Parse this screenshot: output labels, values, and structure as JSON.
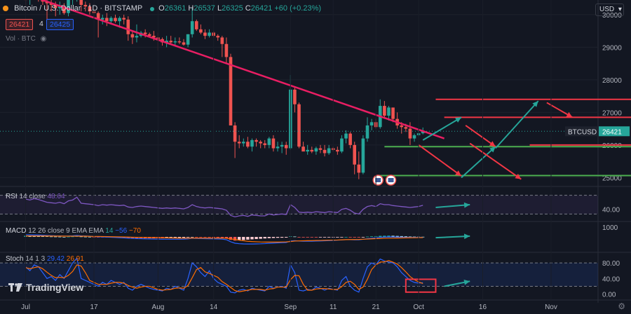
{
  "header": {
    "symbol": "Bitcoin / U.S. Dollar · 1D · BITSTAMP",
    "open_label": "O",
    "open": "26361",
    "high_label": "H",
    "high": "26537",
    "low_label": "L",
    "low": "26325",
    "close_label": "C",
    "close": "26421",
    "change": "+60 (+0.23%)",
    "sell_price": "26421",
    "spread": "4",
    "buy_price": "26425"
  },
  "volume_label": "Vol · BTC",
  "currency_button": "USD",
  "price_axis": {
    "ticks": [
      25000,
      26000,
      27000,
      28000,
      29000,
      30000
    ],
    "tick_labels": [
      "25000",
      "26000",
      "27000",
      "28000",
      "29000",
      "30000"
    ],
    "range": [
      24900,
      30450
    ],
    "tag_symbol": "BTCUSD",
    "tag_price": "26421"
  },
  "rsi": {
    "name": "RSI",
    "params": "14 close",
    "value": "48.64",
    "axis_label": "40.00",
    "axis_value": 40,
    "range": [
      20,
      80
    ],
    "bands": [
      30,
      70
    ]
  },
  "macd": {
    "name": "MACD",
    "params": "12 26 close 9 EMA EMA",
    "histogram_value": "14",
    "macd_value": "−56",
    "signal_value": "−70",
    "axis_label": "1000",
    "axis_value": 1000,
    "range": [
      -1300,
      1300
    ]
  },
  "stoch": {
    "name": "Stoch",
    "params": "14 1 3",
    "k_value": "29.42",
    "d_value": "26.91",
    "axis_labels": [
      "80.00",
      "40.00",
      "0.00"
    ],
    "axis_values": [
      80,
      40,
      0
    ],
    "range": [
      -8,
      100
    ],
    "bands": [
      20,
      80
    ]
  },
  "time_axis": {
    "labels": [
      "Jul",
      "17",
      "Aug",
      "14",
      "Sep",
      "11",
      "21",
      "Oct",
      "16",
      "Nov"
    ],
    "label_days": [
      0,
      16,
      31,
      44,
      62,
      72,
      82,
      92,
      107,
      123
    ],
    "start": "2023-07-01",
    "day_count": 140
  },
  "branding": "TradingView",
  "colors": {
    "up": "#26a69a",
    "down": "#ef5350",
    "trendline": "#e91e63",
    "support": "#4caf50",
    "resistance": "#f23645",
    "arrow_up": "#26a69a",
    "arrow_down": "#f23645",
    "rsi": "#7e57c2",
    "macd": "#2962ff",
    "signal": "#ff6d00",
    "stoch_k": "#2962ff",
    "stoch_d": "#ff6d00",
    "callout": "#f23645"
  },
  "chart_data": {
    "type": "candlestick",
    "title": "Bitcoin / U.S. Dollar · 1D · BITSTAMP",
    "xlabel": "",
    "ylabel": "",
    "ylim": [
      24900,
      30450
    ],
    "x_start": "2023-07-01",
    "x_step_days": 1,
    "candles_ohlc": [
      [
        30470,
        30600,
        30200,
        30450
      ],
      [
        30450,
        30650,
        30300,
        30600
      ],
      [
        30600,
        30800,
        30500,
        30700
      ],
      [
        30700,
        30900,
        30400,
        30550
      ],
      [
        30550,
        30700,
        30300,
        30400
      ],
      [
        30400,
        30600,
        29800,
        30350
      ],
      [
        30350,
        30500,
        30100,
        30300
      ],
      [
        30300,
        30400,
        29950,
        30200
      ],
      [
        30200,
        30400,
        30000,
        30250
      ],
      [
        30250,
        30350,
        30000,
        30050
      ],
      [
        30050,
        30550,
        29950,
        30500
      ],
      [
        30500,
        30800,
        30300,
        30600
      ],
      [
        30600,
        31800,
        30400,
        31450
      ],
      [
        31450,
        31600,
        30100,
        30300
      ],
      [
        30300,
        30400,
        30100,
        30250
      ],
      [
        30250,
        30350,
        30000,
        30100
      ],
      [
        30100,
        30200,
        29900,
        30050
      ],
      [
        30050,
        30100,
        29300,
        29850
      ],
      [
        29850,
        30000,
        29700,
        29900
      ],
      [
        29900,
        30050,
        29650,
        29800
      ],
      [
        29800,
        29950,
        29700,
        29900
      ],
      [
        29900,
        30000,
        29750,
        29800
      ],
      [
        29800,
        29950,
        29600,
        29900
      ],
      [
        29900,
        30000,
        29700,
        29850
      ],
      [
        29850,
        29950,
        29200,
        29400
      ],
      [
        29400,
        29500,
        29100,
        29300
      ],
      [
        29300,
        29700,
        29150,
        29350
      ],
      [
        29350,
        29500,
        29300,
        29450
      ],
      [
        29450,
        29550,
        29300,
        29400
      ],
      [
        29400,
        29450,
        29300,
        29350
      ],
      [
        29350,
        29500,
        29200,
        29300
      ],
      [
        29300,
        29450,
        28900,
        29250
      ],
      [
        29250,
        29300,
        29050,
        29150
      ],
      [
        29150,
        29350,
        29000,
        29200
      ],
      [
        29200,
        29350,
        29100,
        29150
      ],
      [
        29150,
        29300,
        29050,
        29180
      ],
      [
        29180,
        29300,
        29100,
        29150
      ],
      [
        29150,
        29250,
        29050,
        29080
      ],
      [
        29080,
        29400,
        29000,
        29400
      ],
      [
        29400,
        30200,
        29300,
        29800
      ],
      [
        29800,
        29850,
        29500,
        29550
      ],
      [
        29550,
        29700,
        29400,
        29450
      ],
      [
        29450,
        29550,
        29250,
        29350
      ],
      [
        29350,
        29550,
        29300,
        29450
      ],
      [
        29450,
        29500,
        29300,
        29350
      ],
      [
        29350,
        29400,
        29200,
        29300
      ],
      [
        29300,
        29350,
        28700,
        29100
      ],
      [
        29100,
        29300,
        28500,
        28700
      ],
      [
        28700,
        28800,
        26700,
        26600
      ],
      [
        26600,
        26700,
        25600,
        26100
      ],
      [
        26100,
        26300,
        25900,
        26050
      ],
      [
        26050,
        26200,
        25950,
        26100
      ],
      [
        26100,
        26250,
        25900,
        25950
      ],
      [
        25950,
        26200,
        25800,
        26150
      ],
      [
        26150,
        26200,
        25950,
        26100
      ],
      [
        26100,
        26150,
        25900,
        26050
      ],
      [
        26050,
        26150,
        25900,
        26000
      ],
      [
        26000,
        26250,
        25900,
        26200
      ],
      [
        26200,
        26300,
        25800,
        25900
      ],
      [
        25900,
        26100,
        25800,
        25950
      ],
      [
        25950,
        26100,
        25750,
        26000
      ],
      [
        26000,
        26100,
        25700,
        25900
      ],
      [
        25900,
        28150,
        25850,
        27700
      ],
      [
        27700,
        27800,
        27000,
        27250
      ],
      [
        27250,
        27300,
        25900,
        25950
      ],
      [
        25950,
        26100,
        25850,
        25800
      ],
      [
        25800,
        26000,
        25700,
        25850
      ],
      [
        25850,
        25950,
        25750,
        25800
      ],
      [
        25800,
        25950,
        25700,
        25900
      ],
      [
        25900,
        26000,
        25750,
        25850
      ],
      [
        25850,
        26000,
        25650,
        25750
      ],
      [
        25750,
        26000,
        25700,
        25900
      ],
      [
        25900,
        25950,
        25800,
        25850
      ],
      [
        25850,
        25950,
        25700,
        25800
      ],
      [
        25800,
        26300,
        25750,
        26200
      ],
      [
        26200,
        26450,
        26050,
        26350
      ],
      [
        26350,
        26400,
        25900,
        26000
      ],
      [
        26000,
        26100,
        25100,
        25400
      ],
      [
        25400,
        25800,
        24950,
        25150
      ],
      [
        25150,
        26300,
        25100,
        26200
      ],
      [
        26200,
        26850,
        26100,
        26600
      ],
      [
        26600,
        26800,
        26450,
        26700
      ],
      [
        26700,
        26800,
        26500,
        26550
      ],
      [
        26550,
        27400,
        26500,
        27200
      ],
      [
        27200,
        27350,
        26800,
        26900
      ],
      [
        26900,
        27200,
        26750,
        27150
      ],
      [
        27150,
        27000,
        26700,
        26800
      ],
      [
        26800,
        27000,
        26500,
        26600
      ],
      [
        26600,
        26700,
        26350,
        26550
      ],
      [
        26550,
        26650,
        26400,
        26500
      ],
      [
        26500,
        26700,
        26000,
        26200
      ],
      [
        26200,
        26350,
        26100,
        26300
      ],
      [
        26300,
        26450,
        26250,
        26361
      ],
      [
        26361,
        26537,
        26325,
        26421
      ]
    ],
    "overlays": {
      "trendline": {
        "x_days": [
          -6,
          98
        ],
        "y": [
          30900,
          26200
        ]
      },
      "support_lines": [
        {
          "x_days": [
            84,
            144
          ],
          "y": 25950
        },
        {
          "x_days": [
            82,
            144
          ],
          "y": 25060
        }
      ],
      "resistance_lines": [
        {
          "x_days": [
            96,
            157
          ],
          "y": 27400
        },
        {
          "x_days": [
            98,
            157
          ],
          "y": 26850
        },
        {
          "x_days": [
            118,
            144
          ],
          "y": 26000
        }
      ],
      "forecast_arrows_up": [
        {
          "from": [
            93,
            26150
          ],
          "to": [
            102,
            26850
          ]
        },
        {
          "from": [
            102,
            25000
          ],
          "to": [
            110,
            25950
          ]
        },
        {
          "from": [
            110,
            25900
          ],
          "to": [
            120,
            27350
          ]
        }
      ],
      "forecast_arrows_down": [
        {
          "from": [
            92,
            26000
          ],
          "to": [
            102,
            25050
          ]
        },
        {
          "from": [
            103,
            26600
          ],
          "to": [
            110,
            25950
          ]
        },
        {
          "from": [
            122,
            27300
          ],
          "to": [
            128,
            26850
          ]
        },
        {
          "from": [
            104,
            26050
          ],
          "to": [
            116,
            24950
          ]
        }
      ]
    },
    "rsi_series": [
      62,
      60,
      63,
      61,
      58,
      55,
      54,
      53,
      55,
      52,
      58,
      60,
      66,
      53,
      52,
      51,
      50,
      48,
      50,
      49,
      50,
      49,
      48,
      49,
      45,
      44,
      46,
      47,
      46,
      45,
      44,
      43,
      42,
      43,
      42,
      43,
      42,
      41,
      44,
      50,
      46,
      44,
      43,
      44,
      43,
      42,
      41,
      38,
      27,
      24,
      26,
      27,
      25,
      28,
      27,
      26,
      26,
      30,
      28,
      29,
      30,
      29,
      50,
      44,
      34,
      33,
      34,
      33,
      35,
      34,
      33,
      35,
      34,
      33,
      40,
      42,
      38,
      32,
      30,
      40,
      46,
      48,
      46,
      52,
      50,
      50,
      48,
      47,
      46,
      45,
      44,
      45,
      46,
      48.64
    ],
    "macd_hist": [
      120,
      110,
      100,
      90,
      70,
      60,
      40,
      30,
      20,
      0,
      20,
      40,
      80,
      40,
      20,
      10,
      -10,
      -30,
      -40,
      -50,
      -60,
      -70,
      -80,
      -90,
      -110,
      -120,
      -130,
      -130,
      -140,
      -140,
      -150,
      -150,
      -150,
      -140,
      -130,
      -120,
      -110,
      -100,
      -60,
      -20,
      -30,
      -40,
      -50,
      -60,
      -70,
      -80,
      -100,
      -150,
      -300,
      -380,
      -360,
      -320,
      -280,
      -250,
      -220,
      -190,
      -160,
      -130,
      -110,
      -90,
      -80,
      -70,
      60,
      40,
      -20,
      -40,
      -50,
      -55,
      -60,
      -55,
      -50,
      -40,
      -30,
      -20,
      -10,
      0,
      -10,
      -30,
      -40,
      -10,
      30,
      60,
      80,
      110,
      120,
      130,
      120,
      100,
      80,
      60,
      40,
      30,
      20,
      14
    ],
    "macd_line": [
      220,
      210,
      200,
      190,
      170,
      150,
      130,
      110,
      100,
      80,
      90,
      110,
      150,
      110,
      90,
      70,
      40,
      20,
      0,
      -20,
      -40,
      -60,
      -80,
      -100,
      -130,
      -150,
      -170,
      -180,
      -200,
      -210,
      -220,
      -230,
      -240,
      -240,
      -240,
      -240,
      -240,
      -230,
      -200,
      -150,
      -160,
      -170,
      -180,
      -190,
      -200,
      -210,
      -230,
      -290,
      -500,
      -650,
      -700,
      -720,
      -730,
      -730,
      -720,
      -710,
      -690,
      -660,
      -640,
      -620,
      -600,
      -580,
      -420,
      -390,
      -430,
      -440,
      -440,
      -440,
      -430,
      -420,
      -400,
      -380,
      -360,
      -340,
      -310,
      -280,
      -280,
      -300,
      -300,
      -250,
      -190,
      -140,
      -100,
      -50,
      -20,
      0,
      -10,
      -20,
      -30,
      -40,
      -50,
      -55,
      -56,
      -56
    ],
    "signal_line": [
      100,
      100,
      100,
      100,
      100,
      100,
      90,
      80,
      80,
      80,
      70,
      70,
      70,
      70,
      70,
      60,
      50,
      50,
      40,
      30,
      20,
      10,
      0,
      -10,
      -20,
      -30,
      -40,
      -50,
      -60,
      -70,
      -70,
      -80,
      -90,
      -100,
      -110,
      -120,
      -130,
      -130,
      -140,
      -130,
      -130,
      -130,
      -130,
      -130,
      -130,
      -130,
      -130,
      -140,
      -200,
      -270,
      -340,
      -400,
      -450,
      -480,
      -500,
      -520,
      -530,
      -530,
      -530,
      -530,
      -520,
      -510,
      -480,
      -430,
      -410,
      -400,
      -390,
      -385,
      -370,
      -365,
      -350,
      -340,
      -330,
      -320,
      -300,
      -280,
      -270,
      -270,
      -260,
      -240,
      -220,
      -200,
      -180,
      -160,
      -140,
      -130,
      -130,
      -120,
      -110,
      -100,
      -90,
      -85,
      -76,
      -70
    ],
    "stoch_k": [
      70,
      60,
      75,
      70,
      55,
      40,
      45,
      35,
      50,
      40,
      60,
      80,
      92,
      40,
      35,
      30,
      25,
      20,
      30,
      25,
      35,
      30,
      25,
      30,
      15,
      10,
      20,
      25,
      20,
      15,
      12,
      10,
      8,
      15,
      12,
      20,
      15,
      10,
      40,
      80,
      70,
      55,
      45,
      60,
      40,
      30,
      25,
      20,
      5,
      3,
      10,
      12,
      8,
      15,
      12,
      10,
      8,
      20,
      15,
      18,
      20,
      15,
      75,
      55,
      10,
      8,
      12,
      10,
      18,
      15,
      10,
      15,
      12,
      10,
      35,
      45,
      20,
      10,
      5,
      40,
      70,
      80,
      75,
      90,
      85,
      82,
      80,
      70,
      55,
      45,
      35,
      30,
      28,
      29.42
    ],
    "stoch_d": [
      68,
      65,
      68,
      70,
      65,
      56,
      48,
      42,
      43,
      42,
      48,
      58,
      75,
      72,
      55,
      35,
      30,
      25,
      25,
      25,
      28,
      30,
      30,
      28,
      22,
      18,
      15,
      18,
      20,
      20,
      16,
      12,
      10,
      11,
      12,
      15,
      16,
      15,
      22,
      42,
      63,
      68,
      57,
      53,
      48,
      43,
      32,
      25,
      17,
      9,
      6,
      8,
      10,
      12,
      12,
      12,
      10,
      13,
      14,
      18,
      18,
      18,
      37,
      48,
      47,
      25,
      10,
      10,
      13,
      14,
      14,
      13,
      12,
      12,
      19,
      30,
      33,
      25,
      12,
      18,
      38,
      63,
      75,
      82,
      83,
      86,
      82,
      77,
      68,
      57,
      45,
      37,
      31,
      26.91
    ],
    "stoch_callout": {
      "x_days": [
        89,
        96
      ],
      "y": [
        5,
        38
      ]
    }
  }
}
